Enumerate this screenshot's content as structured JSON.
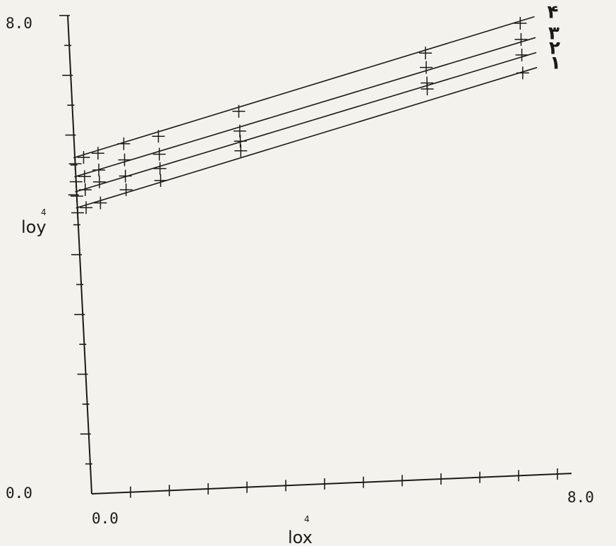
{
  "chart_data": {
    "type": "scatter",
    "title": "",
    "xlabel": "lox",
    "xlabel_sup": "4",
    "ylabel": "loy",
    "ylabel_sup": "4",
    "xlim": [
      0,
      8
    ],
    "ylim": [
      0,
      8
    ],
    "tick_labels": {
      "x_min": "0.0",
      "x_max": "8.0",
      "y_min": "0.0",
      "y_max": "8.0"
    },
    "grid": false,
    "series": [
      {
        "label": "۴",
        "line": [
          [
            0,
            5.62
          ],
          [
            8,
            7.65
          ]
        ],
        "points": [
          [
            0,
            5.52
          ],
          [
            0.15,
            5.62
          ],
          [
            0.4,
            5.68
          ],
          [
            0.85,
            5.82
          ],
          [
            1.45,
            5.92
          ],
          [
            2.85,
            6.28
          ],
          [
            6.1,
            7.12
          ],
          [
            7.75,
            7.55
          ]
        ]
      },
      {
        "label": "۳",
        "line": [
          [
            0,
            5.3
          ],
          [
            8,
            7.3
          ]
        ],
        "points": [
          [
            0,
            5.22
          ],
          [
            0.15,
            5.3
          ],
          [
            0.4,
            5.4
          ],
          [
            0.85,
            5.55
          ],
          [
            1.45,
            5.62
          ],
          [
            2.85,
            5.95
          ],
          [
            6.1,
            6.88
          ],
          [
            7.75,
            7.28
          ]
        ]
      },
      {
        "label": "۲",
        "line": [
          [
            0,
            5.05
          ],
          [
            8,
            7.05
          ]
        ],
        "points": [
          [
            0,
            4.98
          ],
          [
            0.15,
            5.08
          ],
          [
            0.4,
            5.2
          ],
          [
            0.85,
            5.28
          ],
          [
            1.45,
            5.38
          ],
          [
            2.85,
            5.78
          ],
          [
            6.1,
            6.62
          ],
          [
            7.75,
            7.02
          ]
        ]
      },
      {
        "label": "۱",
        "line": [
          [
            0,
            4.78
          ],
          [
            8,
            6.8
          ]
        ],
        "points": [
          [
            0,
            4.7
          ],
          [
            0.15,
            4.78
          ],
          [
            0.4,
            4.85
          ],
          [
            0.85,
            5.05
          ],
          [
            1.45,
            5.18
          ],
          [
            2.85,
            5.62
          ],
          [
            6.1,
            6.52
          ],
          [
            7.75,
            6.72
          ]
        ]
      }
    ]
  }
}
